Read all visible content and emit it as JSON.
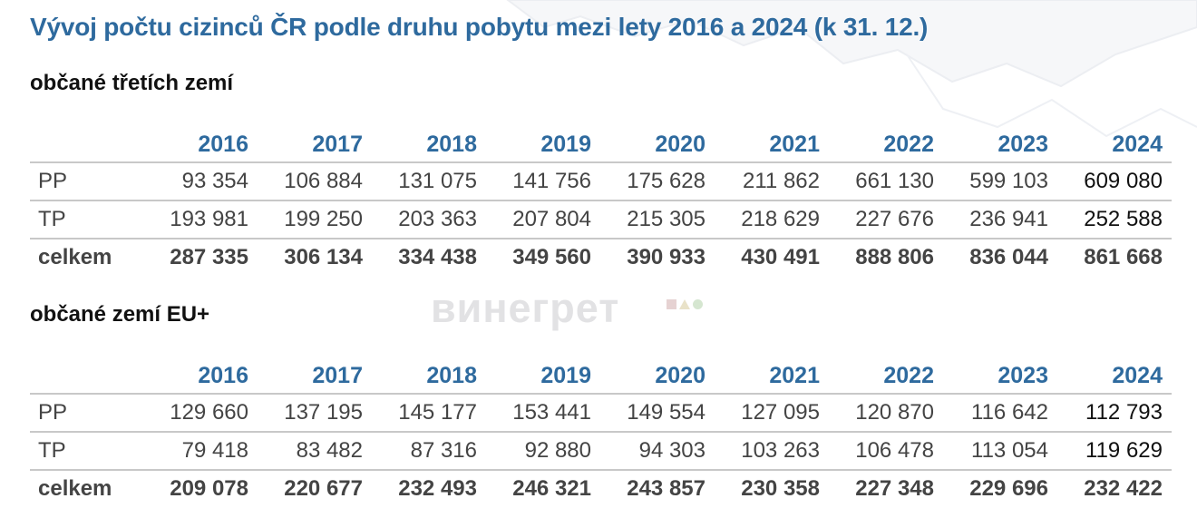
{
  "title": "Vývoj počtu cizinců ČR podle druhu pobytu mezi lety 2016 a 2024 (k 31. 12.)",
  "watermark": "винегрет",
  "chart_data": [
    {
      "type": "table",
      "subtitle": "občané třetích zemí",
      "columns": [
        "2016",
        "2017",
        "2018",
        "2019",
        "2020",
        "2021",
        "2022",
        "2023",
        "2024"
      ],
      "rows": [
        {
          "label": "PP",
          "values": [
            "93 354",
            "106 884",
            "131 075",
            "141 756",
            "175 628",
            "211 862",
            "661 130",
            "599 103",
            "609 080"
          ]
        },
        {
          "label": "TP",
          "values": [
            "193 981",
            "199 250",
            "203 363",
            "207 804",
            "215 305",
            "218 629",
            "227 676",
            "236 941",
            "252 588"
          ]
        },
        {
          "label": "celkem",
          "values": [
            "287 335",
            "306 134",
            "334 438",
            "349 560",
            "390 933",
            "430 491",
            "888 806",
            "836 044",
            "861 668"
          ]
        }
      ]
    },
    {
      "type": "table",
      "subtitle": "občané zemí EU+",
      "columns": [
        "2016",
        "2017",
        "2018",
        "2019",
        "2020",
        "2021",
        "2022",
        "2023",
        "2024"
      ],
      "rows": [
        {
          "label": "PP",
          "values": [
            "129 660",
            "137 195",
            "145 177",
            "153 441",
            "149 554",
            "127 095",
            "120 870",
            "116 642",
            "112 793"
          ]
        },
        {
          "label": "TP",
          "values": [
            "79 418",
            "83 482",
            "87 316",
            "92 880",
            "94 303",
            "103 263",
            "106 478",
            "113 054",
            "119 629"
          ]
        },
        {
          "label": "celkem",
          "values": [
            "209 078",
            "220 677",
            "232 493",
            "246 321",
            "243 857",
            "230 358",
            "227 348",
            "229 696",
            "232 422"
          ]
        }
      ]
    }
  ]
}
